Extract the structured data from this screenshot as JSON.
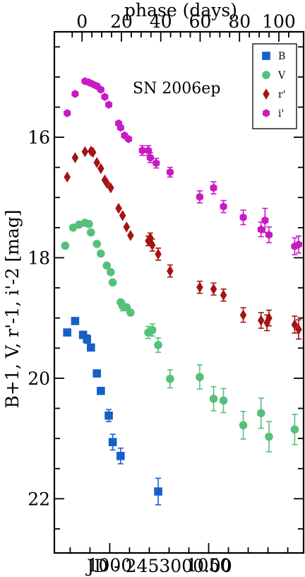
{
  "chart_data": {
    "type": "scatter",
    "xlabel": "JD - 2453000.00",
    "ylabel": "B+1, V, r'-1, i'-2 [mag]",
    "top_axis_label": "phase (days)",
    "annotation": "SN 2006ep",
    "xlim": [
      972,
      1098
    ],
    "ylim": [
      22.9,
      14.25
    ],
    "y_inverted": true,
    "x_ticks": [
      1000,
      1050
    ],
    "x_minor_step": 10,
    "y_ticks": [
      16,
      18,
      20,
      22
    ],
    "y_minor_step": 0.5,
    "top_ticks": [
      0,
      20,
      40,
      60,
      80,
      100
    ],
    "top_tick_positions_jd": [
      986,
      1005.9,
      1025.8,
      1045.7,
      1065.6,
      1085.5
    ],
    "top_minor_step": 5,
    "legend_position": "top-right",
    "series": [
      {
        "name": "B",
        "marker": "square",
        "color": "#1560c8",
        "points": [
          [
            978.5,
            19.24,
            0
          ],
          [
            982.5,
            19.05,
            0
          ],
          [
            986.5,
            19.28,
            0.06
          ],
          [
            988.5,
            19.35,
            0.07
          ],
          [
            990.5,
            19.49,
            0
          ],
          [
            993.5,
            19.92,
            0
          ],
          [
            995.5,
            20.21,
            0
          ],
          [
            999.5,
            20.62,
            0.1
          ],
          [
            1001.5,
            21.06,
            0.13
          ],
          [
            1005.5,
            21.29,
            0.13
          ],
          [
            1024.5,
            21.88,
            0.22
          ]
        ]
      },
      {
        "name": "V",
        "marker": "circle",
        "color": "#55c07a",
        "points": [
          [
            977.5,
            17.8,
            0
          ],
          [
            981.5,
            17.5,
            0
          ],
          [
            984.5,
            17.45,
            0
          ],
          [
            987.5,
            17.42,
            0
          ],
          [
            989.5,
            17.44,
            0
          ],
          [
            990.5,
            17.58,
            0
          ],
          [
            993.5,
            17.77,
            0
          ],
          [
            995.5,
            17.93,
            0
          ],
          [
            998.5,
            18.13,
            0
          ],
          [
            1000.5,
            18.24,
            0
          ],
          [
            1001.5,
            18.41,
            0
          ],
          [
            1005.5,
            18.74,
            0
          ],
          [
            1006.5,
            18.8,
            0.08
          ],
          [
            1008.5,
            18.82,
            0
          ],
          [
            1010.5,
            18.91,
            0
          ],
          [
            1019.5,
            19.24,
            0.1
          ],
          [
            1021.5,
            19.2,
            0.1
          ],
          [
            1024.5,
            19.45,
            0.12
          ],
          [
            1030.5,
            20.01,
            0.15
          ],
          [
            1045.5,
            19.98,
            0.2
          ],
          [
            1052.5,
            20.34,
            0.2
          ],
          [
            1057.5,
            20.37,
            0.2
          ],
          [
            1067.5,
            20.78,
            0.23
          ],
          [
            1076.5,
            20.58,
            0.25
          ],
          [
            1080.5,
            20.97,
            0.25
          ],
          [
            1093.5,
            20.85,
            0.25
          ]
        ]
      },
      {
        "name": "r'",
        "marker": "diamond",
        "color": "#a41414",
        "points": [
          [
            978.5,
            16.66,
            0
          ],
          [
            982.5,
            16.34,
            0
          ],
          [
            987.5,
            16.24,
            0
          ],
          [
            990.5,
            16.23,
            0
          ],
          [
            991.5,
            16.25,
            0
          ],
          [
            993.5,
            16.42,
            0
          ],
          [
            995.5,
            16.52,
            0
          ],
          [
            997.5,
            16.71,
            0
          ],
          [
            998.5,
            16.76,
            0
          ],
          [
            1000.5,
            16.84,
            0
          ],
          [
            1004.5,
            17.18,
            0
          ],
          [
            1006.5,
            17.3,
            0
          ],
          [
            1008.5,
            17.49,
            0
          ],
          [
            1010.5,
            17.63,
            0
          ],
          [
            1019.5,
            17.72,
            0.08
          ],
          [
            1020.5,
            17.67,
            0.08
          ],
          [
            1021.5,
            17.79,
            0.1
          ],
          [
            1024.5,
            17.94,
            0.1
          ],
          [
            1030.5,
            18.22,
            0.1
          ],
          [
            1045.5,
            18.49,
            0.1
          ],
          [
            1052.5,
            18.52,
            0.1
          ],
          [
            1057.5,
            18.62,
            0.1
          ],
          [
            1067.5,
            18.95,
            0.12
          ],
          [
            1076.5,
            19.04,
            0.13
          ],
          [
            1079.5,
            19.08,
            0.13
          ],
          [
            1080.5,
            19.0,
            0.13
          ],
          [
            1093.5,
            19.11,
            0.14
          ],
          [
            1095.5,
            19.19,
            0.16
          ]
        ]
      },
      {
        "name": "i'",
        "marker": "hexagon",
        "color": "#c81ac4",
        "points": [
          [
            978.5,
            15.6,
            0
          ],
          [
            982.5,
            15.28,
            0
          ],
          [
            987.5,
            15.07,
            0
          ],
          [
            989.5,
            15.09,
            0
          ],
          [
            991.5,
            15.12,
            0
          ],
          [
            993.5,
            15.15,
            0
          ],
          [
            995.5,
            15.21,
            0
          ],
          [
            997.5,
            15.33,
            0
          ],
          [
            999.5,
            15.46,
            0
          ],
          [
            1004.5,
            15.77,
            0
          ],
          [
            1005.5,
            15.84,
            0
          ],
          [
            1007.5,
            15.97,
            0
          ],
          [
            1009.5,
            16.03,
            0
          ],
          [
            1016.5,
            16.22,
            0.08
          ],
          [
            1019.5,
            16.22,
            0.08
          ],
          [
            1020.5,
            16.34,
            0.08
          ],
          [
            1023.5,
            16.43,
            0.08
          ],
          [
            1030.5,
            16.58,
            0.08
          ],
          [
            1045.5,
            16.99,
            0.1
          ],
          [
            1052.5,
            16.84,
            0.1
          ],
          [
            1057.5,
            17.15,
            0.1
          ],
          [
            1067.5,
            17.33,
            0.12
          ],
          [
            1076.5,
            17.53,
            0.12
          ],
          [
            1078.5,
            17.38,
            0.2
          ],
          [
            1080.5,
            17.62,
            0.13
          ],
          [
            1093.5,
            17.81,
            0.14
          ],
          [
            1095.5,
            17.78,
            0.14
          ]
        ]
      }
    ]
  }
}
